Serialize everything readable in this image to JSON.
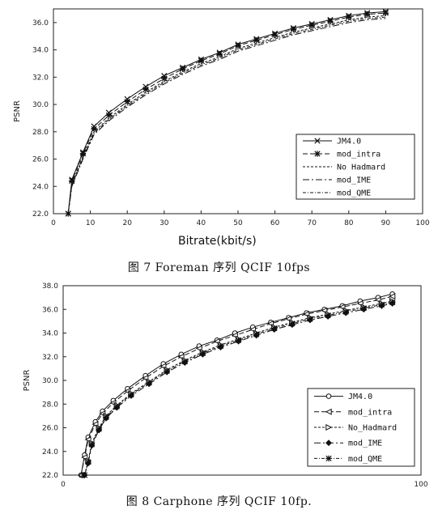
{
  "chart_data": [
    {
      "type": "line",
      "title": "",
      "xlabel": "Bitrate(kbit/s)",
      "ylabel": "PSNR",
      "xlim": [
        0,
        100
      ],
      "ylim": [
        22.0,
        37.0
      ],
      "xticks": [
        "0",
        "10",
        "20",
        "30",
        "40",
        "50",
        "60",
        "70",
        "80",
        "90",
        "100"
      ],
      "yticks": [
        "22.0",
        "24.0",
        "26.0",
        "28.0",
        "30.0",
        "32.0",
        "34.0",
        "36.0"
      ],
      "grid": false,
      "legend_position": "bottom-right",
      "series": [
        {
          "name": "JM4.0",
          "marker": "x",
          "points": [
            [
              4,
              22.0
            ],
            [
              5,
              24.5
            ],
            [
              8,
              26.5
            ],
            [
              11,
              28.4
            ],
            [
              15,
              29.4
            ],
            [
              20,
              30.4
            ],
            [
              25,
              31.3
            ],
            [
              30,
              32.1
            ],
            [
              35,
              32.7
            ],
            [
              40,
              33.3
            ],
            [
              45,
              33.8
            ],
            [
              50,
              34.4
            ],
            [
              55,
              34.8
            ],
            [
              60,
              35.2
            ],
            [
              65,
              35.6
            ],
            [
              70,
              35.9
            ],
            [
              75,
              36.2
            ],
            [
              80,
              36.5
            ],
            [
              85,
              36.7
            ],
            [
              90,
              36.8
            ]
          ]
        },
        {
          "name": "mod_intra",
          "marker": "star",
          "points": [
            [
              4,
              22.0
            ],
            [
              5,
              24.4
            ],
            [
              8,
              26.4
            ],
            [
              11,
              28.2
            ],
            [
              15,
              29.2
            ],
            [
              20,
              30.2
            ],
            [
              25,
              31.1
            ],
            [
              30,
              31.9
            ],
            [
              35,
              32.6
            ],
            [
              40,
              33.2
            ],
            [
              45,
              33.7
            ],
            [
              50,
              34.3
            ],
            [
              55,
              34.7
            ],
            [
              60,
              35.1
            ],
            [
              65,
              35.5
            ],
            [
              70,
              35.8
            ],
            [
              75,
              36.1
            ],
            [
              80,
              36.4
            ],
            [
              85,
              36.6
            ],
            [
              90,
              36.7
            ]
          ]
        },
        {
          "name": "No Hadmard",
          "marker": "none",
          "points": [
            [
              4,
              22.0
            ],
            [
              5,
              24.2
            ],
            [
              8,
              26.2
            ],
            [
              11,
              28.0
            ],
            [
              15,
              29.0
            ],
            [
              20,
              30.0
            ],
            [
              25,
              30.9
            ],
            [
              30,
              31.7
            ],
            [
              35,
              32.4
            ],
            [
              40,
              33.0
            ],
            [
              45,
              33.5
            ],
            [
              50,
              34.1
            ],
            [
              55,
              34.5
            ],
            [
              60,
              34.9
            ],
            [
              65,
              35.3
            ],
            [
              70,
              35.6
            ],
            [
              75,
              35.9
            ],
            [
              80,
              36.2
            ],
            [
              85,
              36.4
            ],
            [
              90,
              36.5
            ]
          ]
        },
        {
          "name": "mod_IME",
          "marker": "none",
          "points": [
            [
              4,
              22.0
            ],
            [
              5,
              24.0
            ],
            [
              8,
              26.0
            ],
            [
              11,
              27.8
            ],
            [
              15,
              28.8
            ],
            [
              20,
              29.8
            ],
            [
              25,
              30.7
            ],
            [
              30,
              31.5
            ],
            [
              35,
              32.2
            ],
            [
              40,
              32.8
            ],
            [
              45,
              33.3
            ],
            [
              50,
              33.9
            ],
            [
              55,
              34.3
            ],
            [
              60,
              34.7
            ],
            [
              65,
              35.1
            ],
            [
              70,
              35.4
            ],
            [
              75,
              35.7
            ],
            [
              80,
              36.0
            ],
            [
              85,
              36.2
            ],
            [
              90,
              36.3
            ]
          ]
        },
        {
          "name": "mod_QME",
          "marker": "none",
          "points": [
            [
              4,
              22.0
            ],
            [
              5,
              24.1
            ],
            [
              8,
              26.1
            ],
            [
              11,
              27.9
            ],
            [
              15,
              28.9
            ],
            [
              20,
              29.9
            ],
            [
              25,
              30.8
            ],
            [
              30,
              31.6
            ],
            [
              35,
              32.3
            ],
            [
              40,
              32.9
            ],
            [
              45,
              33.4
            ],
            [
              50,
              34.0
            ],
            [
              55,
              34.4
            ],
            [
              60,
              34.8
            ],
            [
              65,
              35.2
            ],
            [
              70,
              35.5
            ],
            [
              75,
              35.8
            ],
            [
              80,
              36.1
            ],
            [
              85,
              36.3
            ],
            [
              90,
              36.4
            ]
          ]
        }
      ]
    },
    {
      "type": "line",
      "title": "",
      "xlabel": "",
      "ylabel": "PSNR",
      "xlim": [
        0,
        100
      ],
      "ylim": [
        22.0,
        38.0
      ],
      "xticks": [
        "0",
        "100"
      ],
      "yticks": [
        "22.0",
        "24.0",
        "26.0",
        "28.0",
        "30.0",
        "32.0",
        "34.0",
        "36.0",
        "38.0"
      ],
      "grid": false,
      "legend_position": "bottom-right",
      "series": [
        {
          "name": "JM4.0",
          "marker": "circle",
          "points": [
            [
              5,
              22.0
            ],
            [
              6,
              23.7
            ],
            [
              7,
              25.2
            ],
            [
              9,
              26.5
            ],
            [
              11,
              27.4
            ],
            [
              14,
              28.3
            ],
            [
              18,
              29.3
            ],
            [
              23,
              30.4
            ],
            [
              28,
              31.4
            ],
            [
              33,
              32.2
            ],
            [
              38,
              32.9
            ],
            [
              43,
              33.4
            ],
            [
              48,
              34.0
            ],
            [
              53,
              34.5
            ],
            [
              58,
              34.9
            ],
            [
              63,
              35.3
            ],
            [
              68,
              35.7
            ],
            [
              73,
              36.0
            ],
            [
              78,
              36.3
            ],
            [
              83,
              36.7
            ],
            [
              88,
              37.0
            ],
            [
              92,
              37.3
            ]
          ]
        },
        {
          "name": "mod_intra",
          "marker": "triangle-left",
          "points": [
            [
              5,
              22.0
            ],
            [
              6,
              23.5
            ],
            [
              7,
              25.0
            ],
            [
              9,
              26.3
            ],
            [
              11,
              27.2
            ],
            [
              14,
              28.1
            ],
            [
              18,
              29.1
            ],
            [
              23,
              30.2
            ],
            [
              28,
              31.2
            ],
            [
              33,
              32.0
            ],
            [
              38,
              32.7
            ],
            [
              43,
              33.3
            ],
            [
              48,
              33.8
            ],
            [
              53,
              34.3
            ],
            [
              58,
              34.8
            ],
            [
              63,
              35.2
            ],
            [
              68,
              35.6
            ],
            [
              73,
              35.9
            ],
            [
              78,
              36.2
            ],
            [
              83,
              36.5
            ],
            [
              88,
              36.8
            ],
            [
              92,
              37.1
            ]
          ]
        },
        {
          "name": "No_Hadmard",
          "marker": "triangle-right",
          "points": [
            [
              6,
              22.0
            ],
            [
              7,
              23.2
            ],
            [
              8,
              24.7
            ],
            [
              10,
              26.0
            ],
            [
              12,
              27.0
            ],
            [
              15,
              27.9
            ],
            [
              19,
              28.9
            ],
            [
              24,
              29.9
            ],
            [
              29,
              30.9
            ],
            [
              34,
              31.7
            ],
            [
              39,
              32.4
            ],
            [
              44,
              33.0
            ],
            [
              49,
              33.5
            ],
            [
              54,
              34.0
            ],
            [
              59,
              34.5
            ],
            [
              64,
              34.9
            ],
            [
              69,
              35.3
            ],
            [
              74,
              35.6
            ],
            [
              79,
              35.9
            ],
            [
              84,
              36.2
            ],
            [
              89,
              36.5
            ],
            [
              92,
              36.7
            ]
          ]
        },
        {
          "name": "mod_IME",
          "marker": "diamond",
          "points": [
            [
              6,
              22.0
            ],
            [
              7,
              23.0
            ],
            [
              8,
              24.5
            ],
            [
              10,
              25.8
            ],
            [
              12,
              26.8
            ],
            [
              15,
              27.7
            ],
            [
              19,
              28.7
            ],
            [
              24,
              29.7
            ],
            [
              29,
              30.7
            ],
            [
              34,
              31.5
            ],
            [
              39,
              32.2
            ],
            [
              44,
              32.8
            ],
            [
              49,
              33.3
            ],
            [
              54,
              33.8
            ],
            [
              59,
              34.3
            ],
            [
              64,
              34.7
            ],
            [
              69,
              35.1
            ],
            [
              74,
              35.4
            ],
            [
              79,
              35.7
            ],
            [
              84,
              36.0
            ],
            [
              89,
              36.3
            ],
            [
              92,
              36.5
            ]
          ]
        },
        {
          "name": "mod_QME",
          "marker": "star",
          "points": [
            [
              6,
              22.0
            ],
            [
              7,
              23.1
            ],
            [
              8,
              24.6
            ],
            [
              10,
              25.9
            ],
            [
              12,
              26.9
            ],
            [
              15,
              27.8
            ],
            [
              19,
              28.8
            ],
            [
              24,
              29.8
            ],
            [
              29,
              30.8
            ],
            [
              34,
              31.6
            ],
            [
              39,
              32.3
            ],
            [
              44,
              32.9
            ],
            [
              49,
              33.4
            ],
            [
              54,
              33.9
            ],
            [
              59,
              34.4
            ],
            [
              64,
              34.8
            ],
            [
              69,
              35.2
            ],
            [
              74,
              35.5
            ],
            [
              79,
              35.8
            ],
            [
              84,
              36.1
            ],
            [
              89,
              36.4
            ],
            [
              92,
              36.6
            ]
          ]
        }
      ]
    }
  ],
  "captions": {
    "fig7": "图 7 Foreman 序列 QCIF 10fps",
    "fig8": "图 8 Carphone 序列 QCIF 10fp."
  }
}
